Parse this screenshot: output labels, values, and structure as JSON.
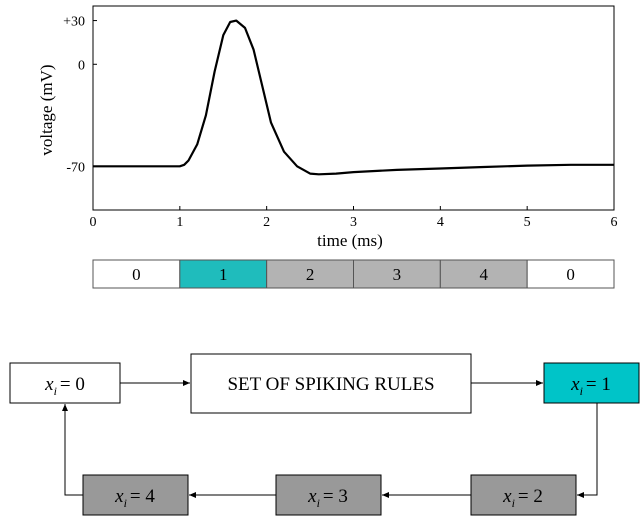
{
  "chart_data": {
    "type": "line",
    "title": "",
    "xlabel": "time (ms)",
    "ylabel": "voltage (mV)",
    "xlim": [
      0,
      6
    ],
    "ylim": [
      -100,
      40
    ],
    "x_ticks": [
      "0",
      "1",
      "2",
      "3",
      "4",
      "5",
      "6"
    ],
    "y_ticks": [
      {
        "value": 30,
        "label": "+30"
      },
      {
        "value": 0,
        "label": "0"
      },
      {
        "value": -70,
        "label": "-70"
      }
    ],
    "grid": false,
    "series": [
      {
        "color": "#000000",
        "points": [
          [
            0,
            -70
          ],
          [
            1.0,
            -70
          ],
          [
            1.05,
            -69
          ],
          [
            1.1,
            -66
          ],
          [
            1.2,
            -55
          ],
          [
            1.3,
            -35
          ],
          [
            1.4,
            -5
          ],
          [
            1.5,
            20
          ],
          [
            1.58,
            29
          ],
          [
            1.65,
            30
          ],
          [
            1.75,
            25
          ],
          [
            1.85,
            10
          ],
          [
            1.95,
            -15
          ],
          [
            2.05,
            -40
          ],
          [
            2.2,
            -60
          ],
          [
            2.35,
            -70
          ],
          [
            2.5,
            -75
          ],
          [
            2.6,
            -75.5
          ],
          [
            2.8,
            -75
          ],
          [
            3.0,
            -74
          ],
          [
            3.5,
            -72.5
          ],
          [
            4.0,
            -71.5
          ],
          [
            4.5,
            -70.5
          ],
          [
            5.0,
            -69.5
          ],
          [
            5.5,
            -69
          ],
          [
            6.0,
            -69
          ]
        ]
      }
    ]
  },
  "state_bar": {
    "cells": [
      {
        "label": "0",
        "x0": 0,
        "x1": 1,
        "color": "#ffffff"
      },
      {
        "label": "1",
        "x0": 1,
        "x1": 2,
        "color": "#1fbcbc"
      },
      {
        "label": "2",
        "x0": 2,
        "x1": 3,
        "color": "#b3b3b3"
      },
      {
        "label": "3",
        "x0": 3,
        "x1": 4,
        "color": "#b3b3b3"
      },
      {
        "label": "4",
        "x0": 4,
        "x1": 5,
        "color": "#b3b3b3"
      },
      {
        "label": "0",
        "x0": 5,
        "x1": 6,
        "color": "#ffffff"
      }
    ]
  },
  "flow": {
    "var": "x",
    "sub": "i",
    "state0": "= 0",
    "rules": "SET OF SPIKING RULES",
    "state1": "= 1",
    "state2": "= 2",
    "state3": "= 3",
    "state4": "= 4",
    "colors": {
      "active": "#00c4c8",
      "refractory": "#999999",
      "neutral": "#ffffff"
    }
  }
}
